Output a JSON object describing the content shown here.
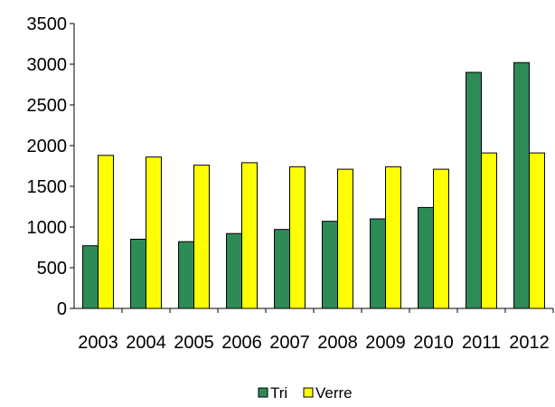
{
  "chart_data": {
    "type": "bar",
    "title": "",
    "xlabel": "",
    "ylabel": "",
    "ylim": [
      0,
      3500
    ],
    "yticks": [
      0,
      500,
      1000,
      1500,
      2000,
      2500,
      3000,
      3500
    ],
    "ytick_labels": [
      "0",
      "500",
      "1000",
      "1500",
      "2000",
      "2500",
      "3000",
      "3500"
    ],
    "categories": [
      "2003",
      "2004",
      "2005",
      "2006",
      "2007",
      "2008",
      "2009",
      "2010",
      "2011",
      "2012"
    ],
    "series": [
      {
        "name": "Tri",
        "color": "#2e8b57",
        "values": [
          770,
          850,
          820,
          920,
          970,
          1070,
          1100,
          1240,
          2900,
          3020
        ]
      },
      {
        "name": "Verre",
        "color": "#ffff00",
        "values": [
          1880,
          1860,
          1760,
          1790,
          1740,
          1710,
          1740,
          1710,
          1910,
          1910
        ]
      }
    ],
    "grid": false,
    "legend_position": "bottom"
  }
}
